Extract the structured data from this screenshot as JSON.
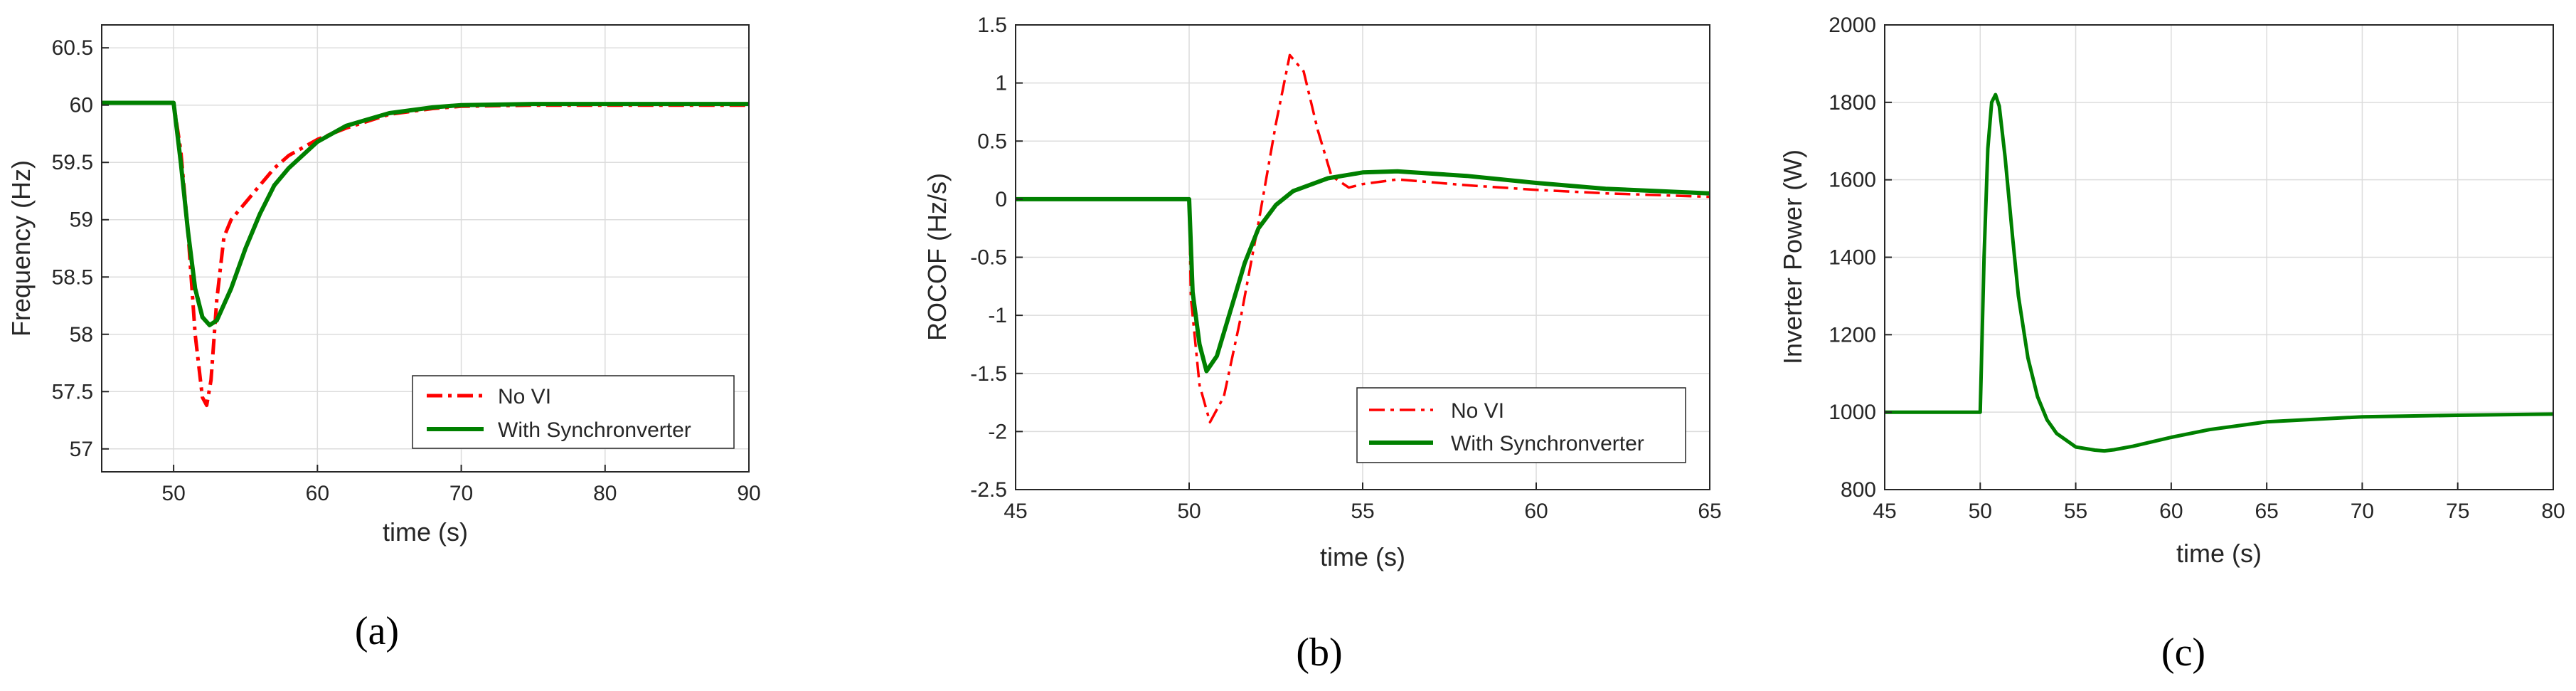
{
  "colors": {
    "no_vi": "#ff0000",
    "synchronverter": "#008000"
  },
  "panel_labels": [
    "(a)",
    "(b)",
    "(c)"
  ],
  "chart_data": [
    {
      "type": "line",
      "id": "a",
      "xlabel": "time (s)",
      "ylabel": "Frequency (Hz)",
      "xlim": [
        45,
        90
      ],
      "ylim": [
        56.8,
        60.7
      ],
      "xticks": [
        50,
        60,
        70,
        80,
        90
      ],
      "yticks": [
        57,
        57.5,
        58,
        58.5,
        59,
        59.5,
        60,
        60.5
      ],
      "xtick_labels": [
        "50",
        "60",
        "70",
        "80",
        "90"
      ],
      "ytick_labels": [
        "57",
        "57.5",
        "58",
        "58.5",
        "59",
        "59.5",
        "60",
        "60.5"
      ],
      "grid": true,
      "legend_position": "lower-right",
      "series": [
        {
          "name": "No VI",
          "style": "dashdot",
          "color": "#ff0000",
          "x": [
            45,
            49.5,
            50,
            50.5,
            51,
            51.5,
            52,
            52.3,
            52.6,
            53,
            53.5,
            54,
            55,
            56,
            57,
            58,
            60,
            62,
            65,
            68,
            70,
            75,
            80,
            90
          ],
          "y": [
            60.02,
            60.02,
            60.02,
            59.6,
            58.9,
            58.0,
            57.45,
            57.38,
            57.6,
            58.3,
            58.85,
            59.0,
            59.15,
            59.3,
            59.45,
            59.56,
            59.7,
            59.8,
            59.92,
            59.97,
            59.99,
            60.0,
            60.0,
            60.0
          ]
        },
        {
          "name": "With Synchronverter",
          "style": "solid",
          "color": "#008000",
          "x": [
            45,
            49.5,
            50,
            50.5,
            51,
            51.5,
            52,
            52.5,
            53,
            54,
            55,
            56,
            57,
            58,
            60,
            62,
            65,
            68,
            70,
            75,
            80,
            90
          ],
          "y": [
            60.02,
            60.02,
            60.02,
            59.5,
            58.9,
            58.4,
            58.15,
            58.08,
            58.12,
            58.4,
            58.75,
            59.05,
            59.3,
            59.45,
            59.68,
            59.82,
            59.93,
            59.98,
            60.0,
            60.01,
            60.01,
            60.01
          ]
        }
      ]
    },
    {
      "type": "line",
      "id": "b",
      "xlabel": "time (s)",
      "ylabel": "ROCOF (Hz/s)",
      "xlim": [
        45,
        65
      ],
      "ylim": [
        -2.5,
        1.5
      ],
      "xticks": [
        45,
        50,
        55,
        60,
        65
      ],
      "yticks": [
        -2.5,
        -2,
        -1.5,
        -1,
        -0.5,
        0,
        0.5,
        1,
        1.5
      ],
      "xtick_labels": [
        "45",
        "50",
        "55",
        "60",
        "65"
      ],
      "ytick_labels": [
        "-2.5",
        "-2",
        "-1.5",
        "-1",
        "-0.5",
        "0",
        "0.5",
        "1",
        "1.5"
      ],
      "grid": true,
      "legend_position": "lower-right",
      "series": [
        {
          "name": "No VI",
          "style": "dashdot",
          "color": "#ff0000",
          "x": [
            45,
            49.9,
            50,
            50.05,
            50.1,
            50.3,
            50.6,
            51.0,
            51.5,
            52,
            52.5,
            52.9,
            53.3,
            53.7,
            54.1,
            54.6,
            55,
            56,
            58,
            60,
            62,
            65
          ],
          "y": [
            0,
            0,
            0,
            -0.85,
            -1.0,
            -1.6,
            -1.92,
            -1.7,
            -1.0,
            -0.2,
            0.65,
            1.24,
            1.1,
            0.6,
            0.2,
            0.1,
            0.13,
            0.17,
            0.12,
            0.08,
            0.05,
            0.02
          ]
        },
        {
          "name": "With Synchronverter",
          "style": "solid",
          "color": "#008000",
          "x": [
            45,
            49.9,
            50,
            50.1,
            50.3,
            50.5,
            50.8,
            51.2,
            51.6,
            52,
            52.5,
            53,
            54,
            55,
            56,
            57,
            58,
            60,
            62,
            65
          ],
          "y": [
            0,
            0,
            0,
            -0.8,
            -1.25,
            -1.48,
            -1.35,
            -0.95,
            -0.55,
            -0.25,
            -0.05,
            0.07,
            0.18,
            0.23,
            0.24,
            0.22,
            0.2,
            0.14,
            0.09,
            0.05
          ]
        }
      ]
    },
    {
      "type": "line",
      "id": "c",
      "xlabel": "time (s)",
      "ylabel": "Inverter Power (W)",
      "xlim": [
        45,
        80
      ],
      "ylim": [
        800,
        2000
      ],
      "xticks": [
        45,
        50,
        55,
        60,
        65,
        70,
        75,
        80
      ],
      "yticks": [
        800,
        1000,
        1200,
        1400,
        1600,
        1800,
        2000
      ],
      "xtick_labels": [
        "45",
        "50",
        "55",
        "60",
        "65",
        "70",
        "75",
        "80"
      ],
      "ytick_labels": [
        "800",
        "1000",
        "1200",
        "1400",
        "1600",
        "1800",
        "2000"
      ],
      "grid": true,
      "series": [
        {
          "name": "Inverter Power",
          "style": "solid",
          "color": "#008000",
          "x": [
            45,
            49.9,
            50,
            50.2,
            50.4,
            50.6,
            50.8,
            51,
            51.3,
            51.7,
            52,
            52.5,
            53,
            53.5,
            54,
            55,
            56,
            56.5,
            57,
            58,
            60,
            62,
            65,
            70,
            75,
            80
          ],
          "y": [
            1000,
            1000,
            1000,
            1400,
            1680,
            1800,
            1820,
            1790,
            1660,
            1450,
            1300,
            1140,
            1040,
            980,
            945,
            910,
            902,
            900,
            903,
            912,
            935,
            955,
            975,
            988,
            992,
            995
          ]
        }
      ]
    }
  ]
}
